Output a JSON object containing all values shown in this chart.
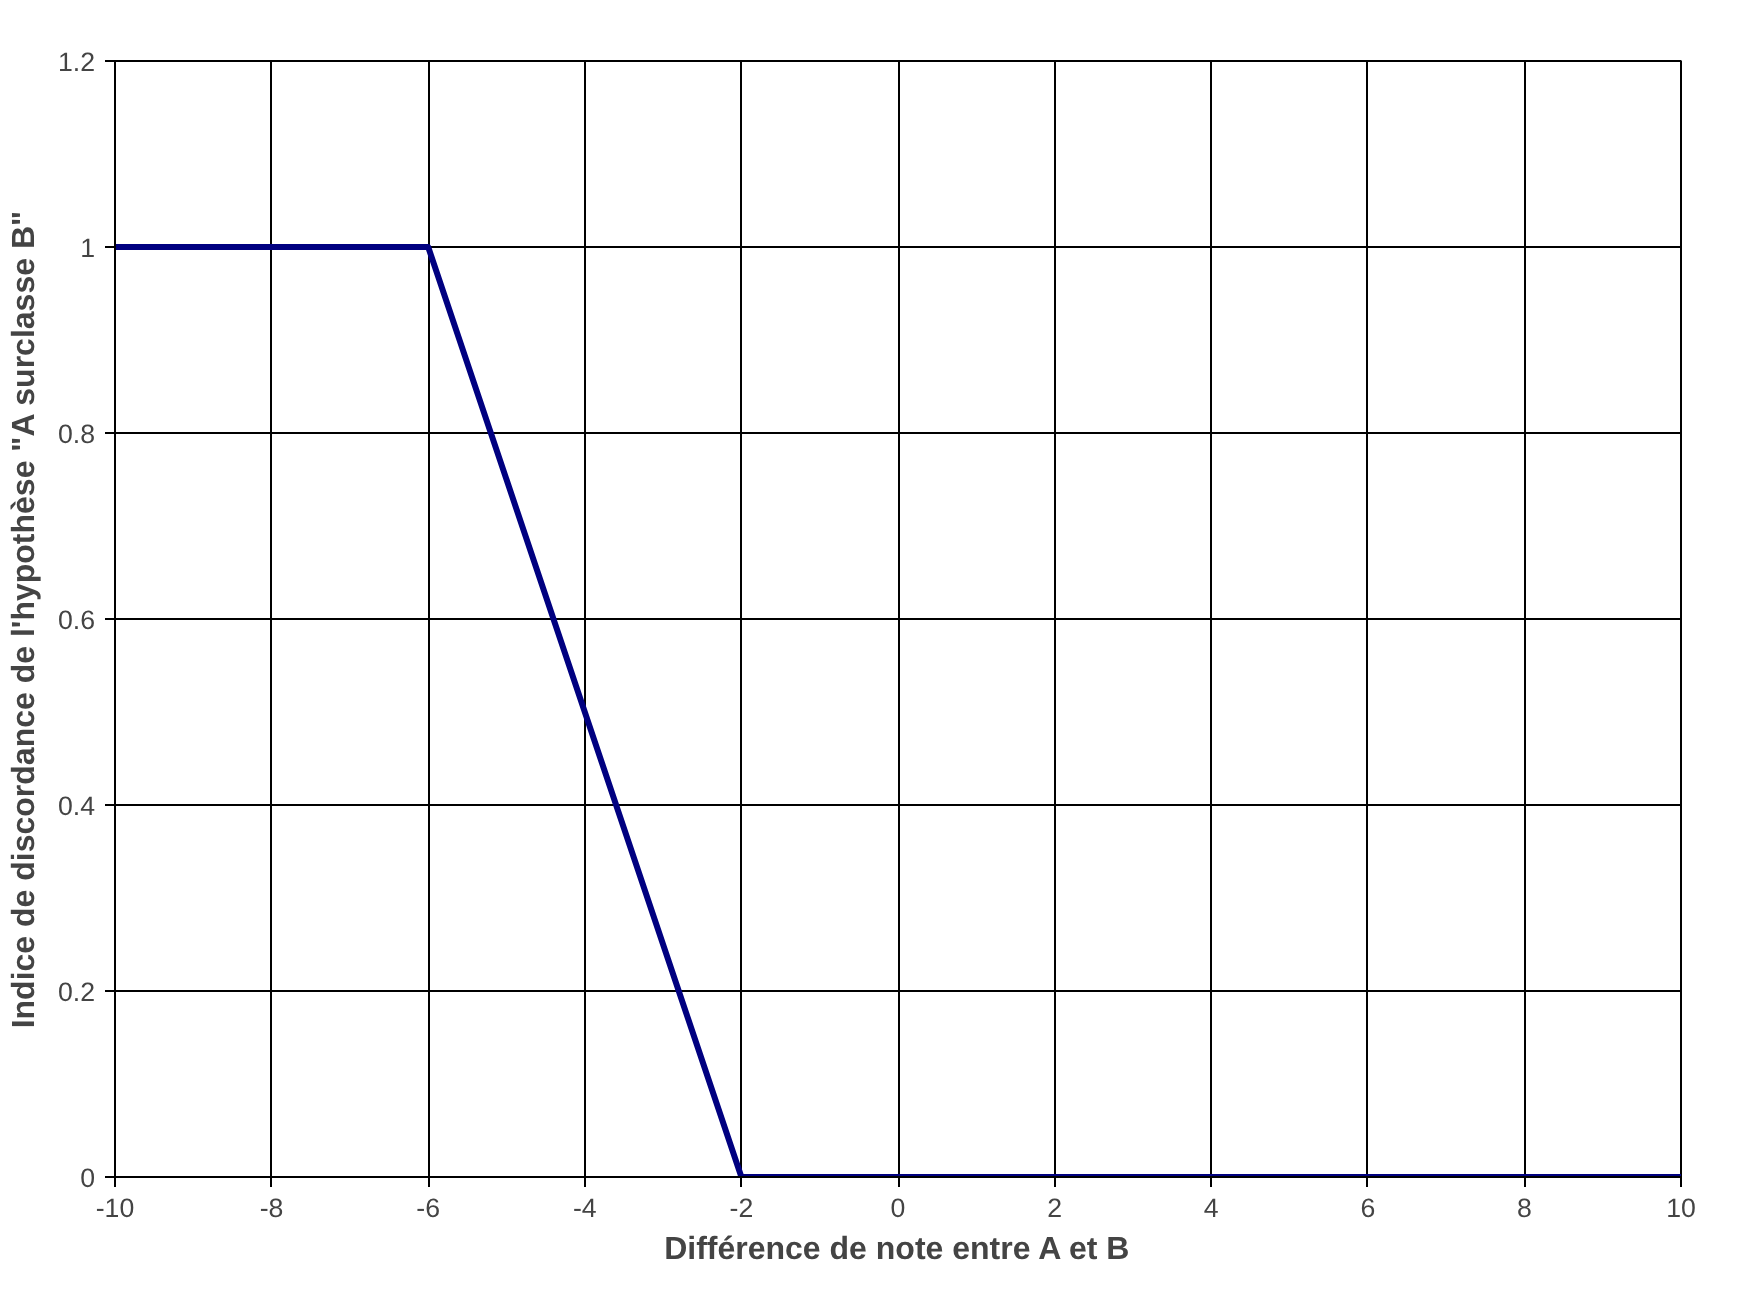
{
  "chart_data": {
    "type": "line",
    "xlabel": "Différence de note entre A et B",
    "ylabel": "Indice de discordance de l'hypothèse \"A surclasse B\"",
    "x": [
      -10,
      -6,
      -2,
      10
    ],
    "series": [
      {
        "color": "#000080",
        "values": [
          1,
          1,
          0,
          0
        ]
      }
    ],
    "xlim": [
      -10,
      10
    ],
    "xticks": [
      -10,
      -8,
      -6,
      -4,
      -2,
      0,
      2,
      4,
      6,
      8,
      10
    ],
    "ylim": [
      0,
      1.2
    ],
    "yticks": [
      0,
      0.2,
      0.4,
      0.6,
      0.8,
      1,
      1.2
    ],
    "grid": true,
    "marker": "none",
    "line_style": "solid"
  }
}
